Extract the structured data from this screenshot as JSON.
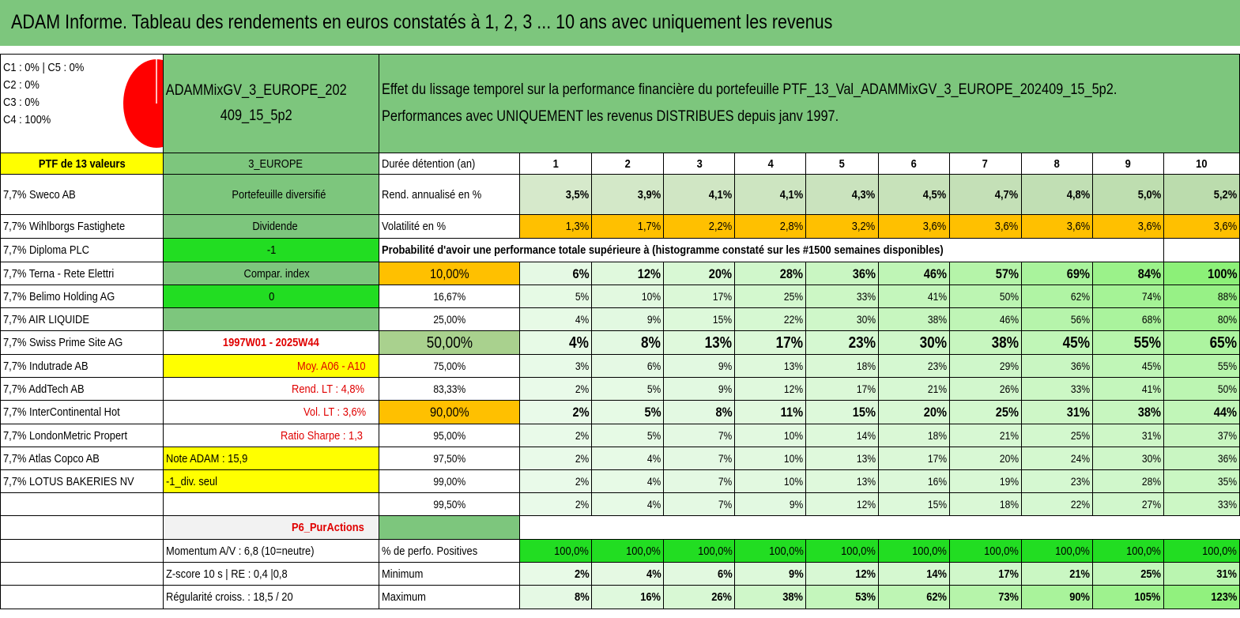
{
  "title": "ADAM Informe. Tableau des rendements en euros constatés à 1, 2, 3 ... 10 ans avec uniquement les revenus",
  "pie": {
    "legend": [
      "C1 : 0% | C5 : 0%",
      "C2 : 0%",
      "C3 : 0%",
      "C4 : 100%"
    ],
    "color": "#ff0000"
  },
  "portfolio_name": "ADAMMixGV_3_EUROPE_202409_15_5p2",
  "description_line1": "Effet du lissage temporel sur la performance financière du portefeuille PTF_13_Val_ADAMMixGV_3_EUROPE_202409_15_5p2.",
  "description_line2": "Performances avec UNIQUEMENT les revenus DISTRIBUES depuis janv 1997.",
  "ptf_header": "PTF de 13 valeurs",
  "zone": "3_EUROPE",
  "holdings": [
    "7,7% Sweco AB",
    "7,7% Wihlborgs Fastighete",
    "7,7% Diploma PLC",
    "7,7% Terna - Rete Elettri",
    "7,7% Belimo Holding AG",
    "7,7% AIR LIQUIDE",
    "7,7% Swiss Prime Site AG",
    "7,7% Indutrade AB",
    "7,7% AddTech AB",
    "7,7% InterContinental Hot",
    "7,7% LondonMetric Propert",
    "7,7% Atlas Copco AB",
    "7,7% LOTUS BAKERIES NV"
  ],
  "info": {
    "type": "Portefeuille diversifié",
    "dividende_label": "Dividende",
    "dividende_value": "-1",
    "compar_label": "Compar. index",
    "compar_value": "0",
    "period": "1997W01 - 2025W44",
    "moy": "Moy. A06 - A10",
    "rend_lt": "Rend. LT : 4,8%",
    "vol_lt": "Vol. LT : 3,6%",
    "sharpe": "Ratio Sharpe : 1,3",
    "note": "Note ADAM : 15,9",
    "div_seul": "-1_div. seul",
    "p6": "P6_PurActions",
    "momentum": "Momentum A/V : 6,8 (10=neutre)",
    "zscore": "Z-score 10 s | RE : 0,4 |0,8",
    "regularite": "Régularité croiss. : 18,5 / 20"
  },
  "duration_label": "Durée détention (an)",
  "years": [
    "1",
    "2",
    "3",
    "4",
    "5",
    "6",
    "7",
    "8",
    "9",
    "10"
  ],
  "rend_label": "Rend. annualisé en %",
  "rend": [
    "3,5%",
    "3,9%",
    "4,1%",
    "4,1%",
    "4,3%",
    "4,5%",
    "4,7%",
    "4,8%",
    "5,0%",
    "5,2%"
  ],
  "vol_label": "Volatilité en %",
  "vol": [
    "1,3%",
    "1,7%",
    "2,2%",
    "2,8%",
    "3,2%",
    "3,6%",
    "3,6%",
    "3,6%",
    "3,6%",
    "3,6%"
  ],
  "proba_label": "Probabilité d'avoir une performance totale supérieure à (histogramme constaté sur les #1500 semaines disponibles)",
  "proba_rows": [
    {
      "p": "10,00%",
      "v": [
        "6%",
        "12%",
        "20%",
        "28%",
        "36%",
        "46%",
        "57%",
        "69%",
        "84%",
        "100%"
      ]
    },
    {
      "p": "16,67%",
      "v": [
        "5%",
        "10%",
        "17%",
        "25%",
        "33%",
        "41%",
        "50%",
        "62%",
        "74%",
        "88%"
      ]
    },
    {
      "p": "25,00%",
      "v": [
        "4%",
        "9%",
        "15%",
        "22%",
        "30%",
        "38%",
        "46%",
        "56%",
        "68%",
        "80%"
      ]
    },
    {
      "p": "50,00%",
      "v": [
        "4%",
        "8%",
        "13%",
        "17%",
        "23%",
        "30%",
        "38%",
        "45%",
        "55%",
        "65%"
      ]
    },
    {
      "p": "75,00%",
      "v": [
        "3%",
        "6%",
        "9%",
        "13%",
        "18%",
        "23%",
        "29%",
        "36%",
        "45%",
        "55%"
      ]
    },
    {
      "p": "83,33%",
      "v": [
        "2%",
        "5%",
        "9%",
        "12%",
        "17%",
        "21%",
        "26%",
        "33%",
        "41%",
        "50%"
      ]
    },
    {
      "p": "90,00%",
      "v": [
        "2%",
        "5%",
        "8%",
        "11%",
        "15%",
        "20%",
        "25%",
        "31%",
        "38%",
        "44%"
      ]
    },
    {
      "p": "95,00%",
      "v": [
        "2%",
        "5%",
        "7%",
        "10%",
        "14%",
        "18%",
        "21%",
        "25%",
        "31%",
        "37%"
      ]
    },
    {
      "p": "97,50%",
      "v": [
        "2%",
        "4%",
        "7%",
        "10%",
        "13%",
        "17%",
        "20%",
        "24%",
        "30%",
        "36%"
      ]
    },
    {
      "p": "99,00%",
      "v": [
        "2%",
        "4%",
        "7%",
        "10%",
        "13%",
        "16%",
        "19%",
        "23%",
        "28%",
        "35%"
      ]
    },
    {
      "p": "99,50%",
      "v": [
        "2%",
        "4%",
        "7%",
        "9%",
        "12%",
        "15%",
        "18%",
        "22%",
        "27%",
        "33%"
      ]
    }
  ],
  "pos_label": "% de perfo. Positives",
  "pos": [
    "100,0%",
    "100,0%",
    "100,0%",
    "100,0%",
    "100,0%",
    "100,0%",
    "100,0%",
    "100,0%",
    "100,0%",
    "100,0%"
  ],
  "min_label": "Minimum",
  "min": [
    "2%",
    "4%",
    "6%",
    "9%",
    "12%",
    "14%",
    "17%",
    "21%",
    "25%",
    "31%"
  ],
  "max_label": "Maximum",
  "max": [
    "8%",
    "16%",
    "26%",
    "38%",
    "53%",
    "62%",
    "73%",
    "90%",
    "105%",
    "123%"
  ]
}
